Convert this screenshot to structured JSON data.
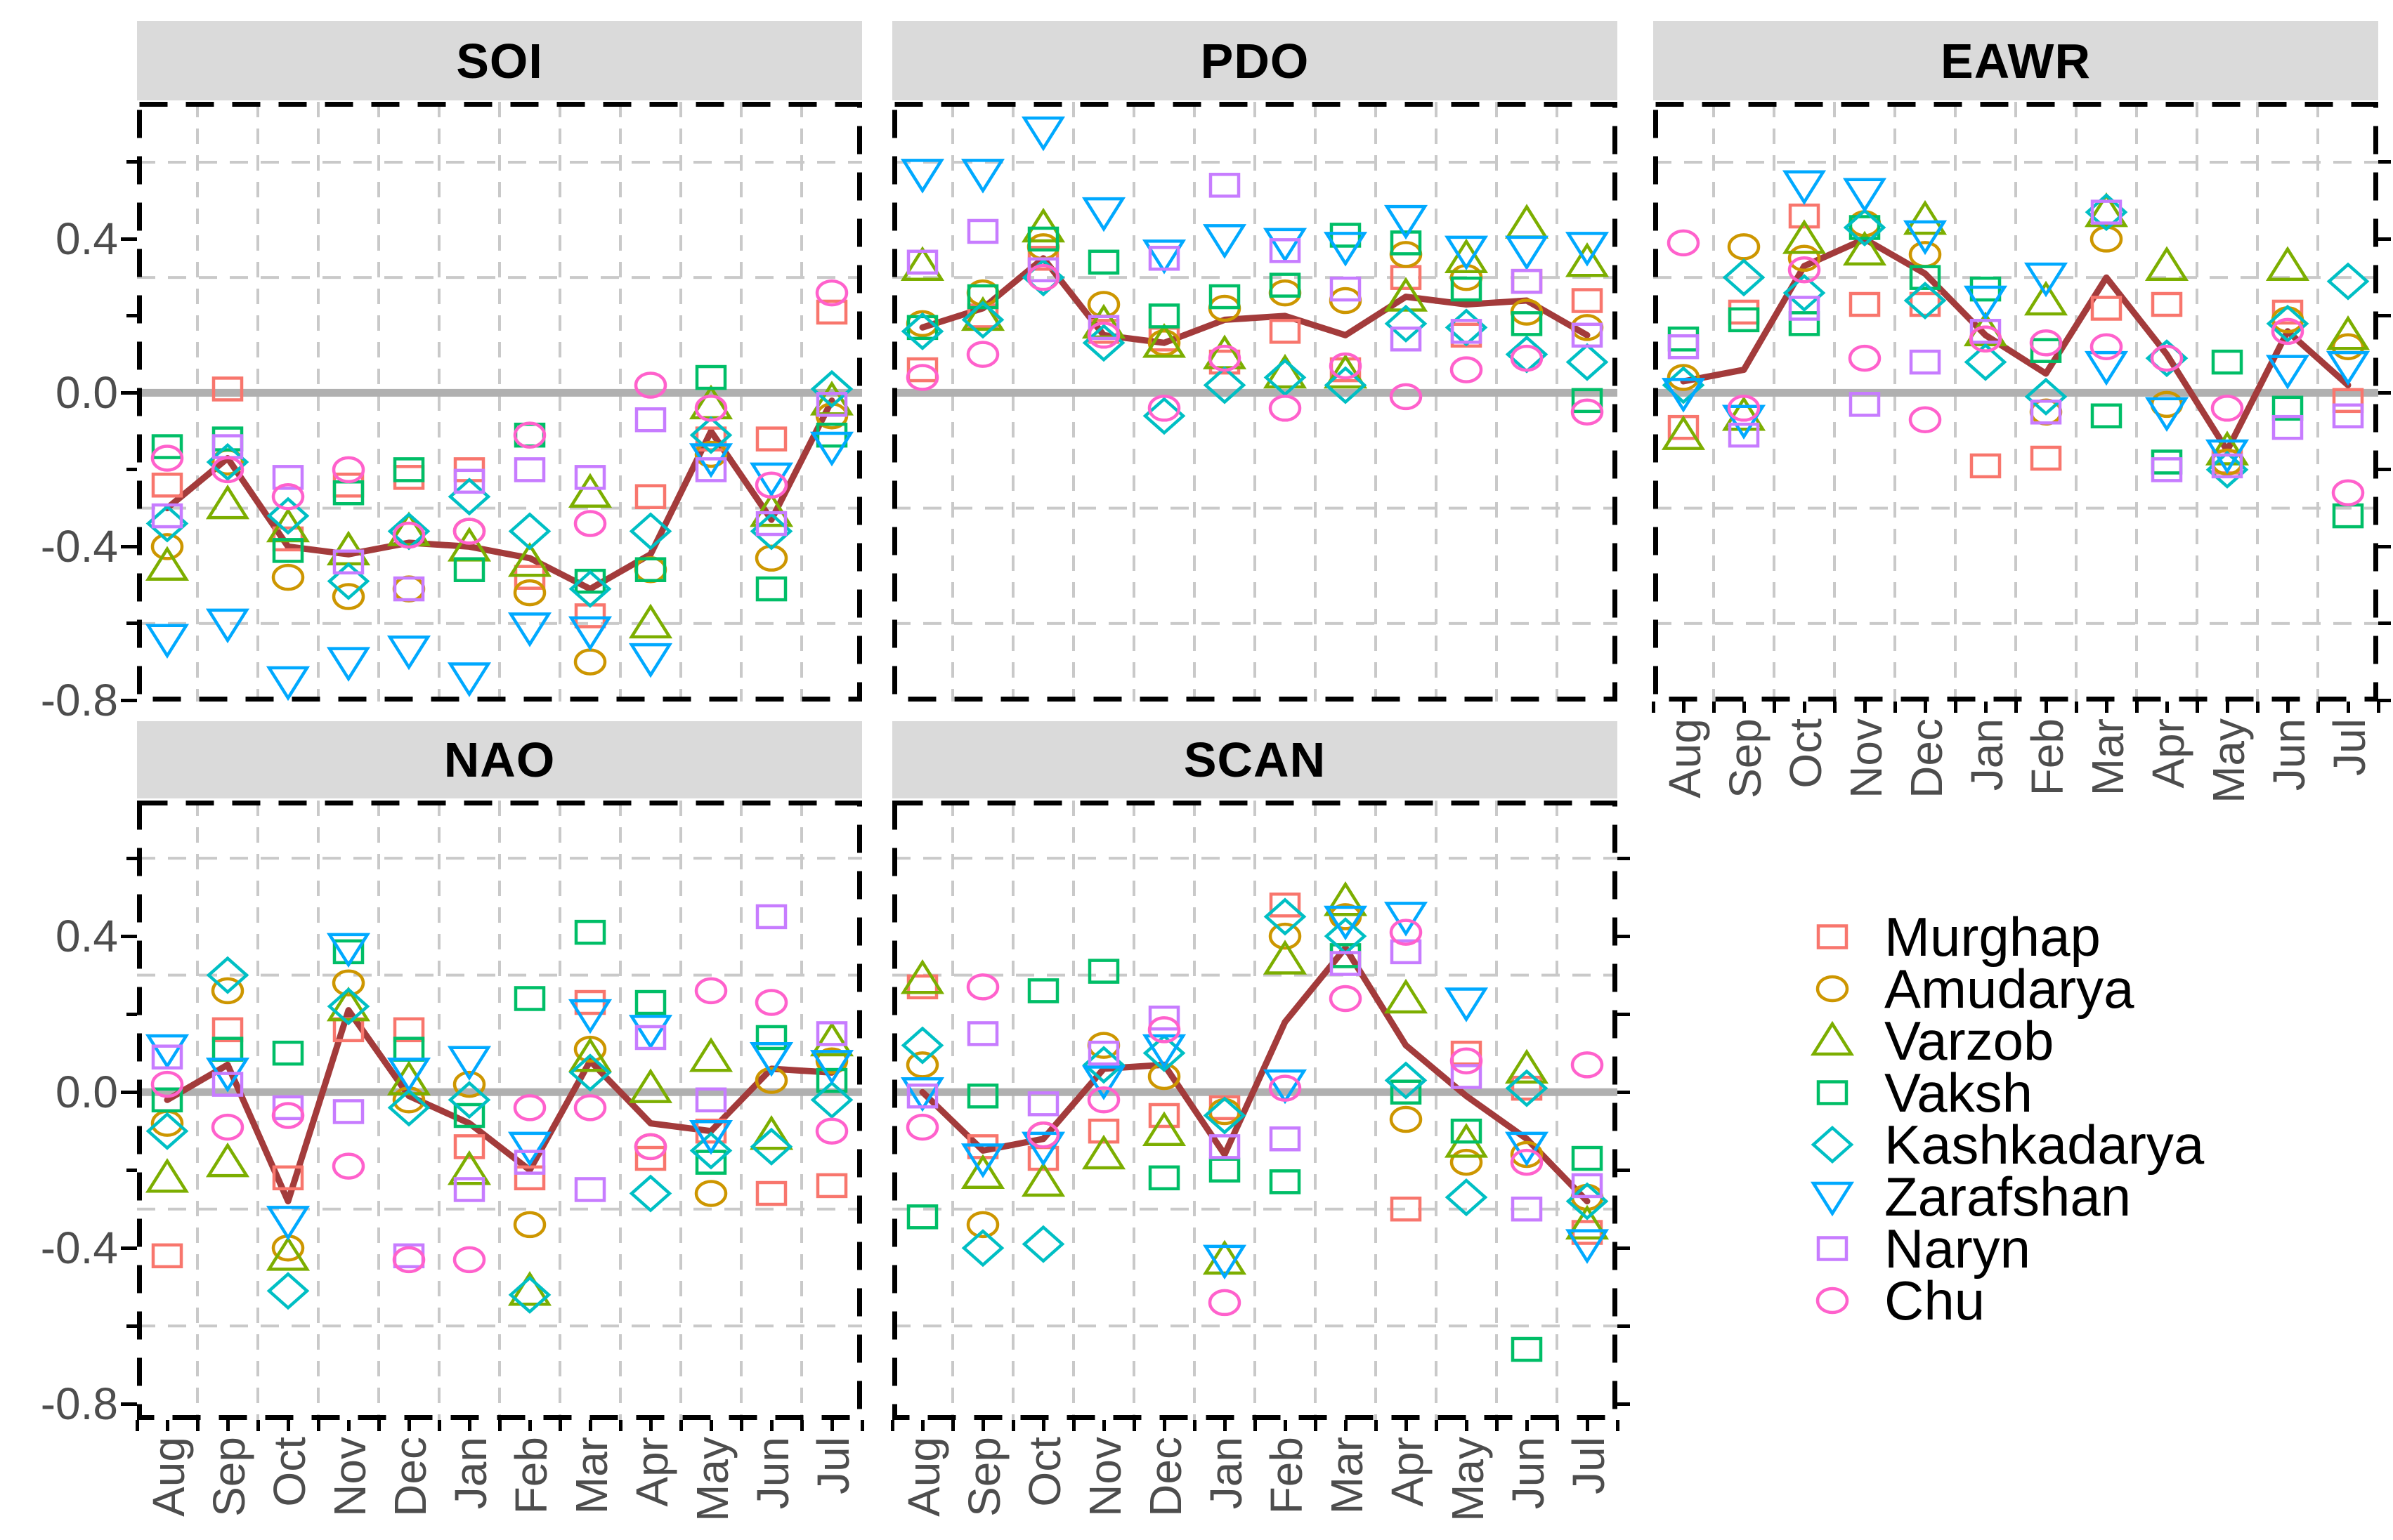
{
  "months": [
    "Aug",
    "Sep",
    "Oct",
    "Nov",
    "Dec",
    "Jan",
    "Feb",
    "Mar",
    "Apr",
    "May",
    "Jun",
    "Jul"
  ],
  "y_axis": {
    "tick_labels": [
      "0.4",
      "0.0",
      "-0.4",
      "-0.8"
    ],
    "tick_values": [
      0.4,
      0.0,
      -0.4,
      -0.8
    ],
    "minor_tick_values": [
      0.6,
      0.2,
      -0.2,
      -0.6
    ],
    "dashed_guide_values": [
      0.6,
      0.3,
      -0.3,
      -0.6
    ]
  },
  "style": {
    "mean_line_color": "#A33B3B",
    "zero_line_color": "#B0B0B0",
    "grid_color": "#C9C9C9",
    "panel_border_color": "#000000",
    "strip_bg_color": "#DADADA",
    "axis_text_color": "#4D4D4D"
  },
  "legend": {
    "items": [
      {
        "label": "Murghap",
        "shape": "square",
        "color": "#F8766D"
      },
      {
        "label": "Amudarya",
        "shape": "circle",
        "color": "#CD9600"
      },
      {
        "label": "Varzob",
        "shape": "triangle-up",
        "color": "#7CAE00"
      },
      {
        "label": "Vaksh",
        "shape": "square",
        "color": "#00BE67"
      },
      {
        "label": "Kashkadarya",
        "shape": "diamond",
        "color": "#00BFC4"
      },
      {
        "label": "Zarafshan",
        "shape": "triangle-down",
        "color": "#00A9FF"
      },
      {
        "label": "Naryn",
        "shape": "square",
        "color": "#C77CFF"
      },
      {
        "label": "Chu",
        "shape": "circle",
        "color": "#FF61CC"
      }
    ]
  },
  "chart_data": [
    {
      "type": "scatter",
      "title": "SOI",
      "row": 0,
      "col": 0,
      "x_categories": [
        "Aug",
        "Sep",
        "Oct",
        "Nov",
        "Dec",
        "Jan",
        "Feb",
        "Mar",
        "Apr",
        "May",
        "Jun",
        "Jul"
      ],
      "ylim": [
        -0.8,
        0.75
      ],
      "series": [
        {
          "name": "Murghap",
          "values": [
            -0.24,
            0.01,
            -0.38,
            -0.24,
            -0.22,
            -0.2,
            -0.48,
            -0.58,
            -0.27,
            -0.12,
            -0.12,
            0.21
          ]
        },
        {
          "name": "Amudarya",
          "values": [
            -0.4,
            -0.18,
            -0.48,
            -0.53,
            -0.51,
            -0.36,
            -0.52,
            -0.7,
            -0.46,
            -0.16,
            -0.43,
            -0.06
          ]
        },
        {
          "name": "Varzob",
          "values": [
            -0.45,
            -0.29,
            -0.35,
            -0.41,
            -0.36,
            -0.4,
            -0.44,
            -0.26,
            -0.6,
            -0.03,
            -0.31,
            -0.02
          ]
        },
        {
          "name": "Vaksh",
          "values": [
            -0.14,
            -0.12,
            -0.41,
            -0.26,
            -0.2,
            -0.46,
            -0.11,
            -0.49,
            -0.46,
            0.04,
            -0.51,
            -0.11
          ]
        },
        {
          "name": "Kashkadarya",
          "values": [
            -0.34,
            -0.18,
            -0.32,
            -0.49,
            -0.36,
            -0.27,
            -0.36,
            -0.51,
            -0.36,
            -0.11,
            -0.36,
            0.01
          ]
        },
        {
          "name": "Zarafshan",
          "values": [
            -0.64,
            -0.6,
            -0.75,
            -0.7,
            -0.67,
            -0.74,
            -0.61,
            -0.62,
            -0.69,
            -0.17,
            -0.22,
            -0.14
          ]
        },
        {
          "name": "Naryn",
          "values": [
            -0.32,
            -0.14,
            -0.22,
            -0.44,
            -0.51,
            -0.23,
            -0.2,
            -0.22,
            -0.07,
            -0.2,
            -0.34,
            -0.03
          ]
        },
        {
          "name": "Chu",
          "values": [
            -0.17,
            -0.2,
            -0.27,
            -0.2,
            -0.37,
            -0.36,
            -0.11,
            -0.34,
            0.02,
            -0.04,
            -0.24,
            0.26
          ]
        }
      ],
      "mean_line": [
        -0.3,
        -0.17,
        -0.4,
        -0.42,
        -0.39,
        -0.4,
        -0.43,
        -0.51,
        -0.42,
        -0.1,
        -0.33,
        -0.02
      ]
    },
    {
      "type": "scatter",
      "title": "PDO",
      "row": 0,
      "col": 1,
      "x_categories": [
        "Aug",
        "Sep",
        "Oct",
        "Nov",
        "Dec",
        "Jan",
        "Feb",
        "Mar",
        "Apr",
        "May",
        "Jun",
        "Jul"
      ],
      "ylim": [
        -0.8,
        0.75
      ],
      "series": [
        {
          "name": "Murghap",
          "values": [
            0.06,
            0.2,
            0.35,
            0.16,
            0.14,
            0.08,
            0.16,
            0.06,
            0.3,
            0.15,
            0.29,
            0.24
          ]
        },
        {
          "name": "Amudarya",
          "values": [
            0.18,
            0.26,
            0.38,
            0.23,
            0.13,
            0.22,
            0.26,
            0.24,
            0.36,
            0.3,
            0.21,
            0.17
          ]
        },
        {
          "name": "Varzob",
          "values": [
            0.33,
            0.2,
            0.43,
            0.18,
            0.13,
            0.1,
            0.05,
            0.05,
            0.25,
            0.35,
            0.44,
            0.34
          ]
        },
        {
          "name": "Vaksh",
          "values": [
            0.17,
            0.25,
            0.4,
            0.34,
            0.2,
            0.25,
            0.28,
            0.41,
            0.39,
            0.27,
            0.18,
            -0.02
          ]
        },
        {
          "name": "Kashkadarya",
          "values": [
            0.16,
            0.19,
            0.3,
            0.13,
            -0.06,
            0.02,
            0.04,
            0.02,
            0.18,
            0.17,
            0.1,
            0.08
          ]
        },
        {
          "name": "Zarafshan",
          "values": [
            0.57,
            0.57,
            0.68,
            0.47,
            0.36,
            0.4,
            0.39,
            0.38,
            0.45,
            0.37,
            0.37,
            0.38
          ]
        },
        {
          "name": "Naryn",
          "values": [
            0.34,
            0.42,
            0.32,
            0.17,
            0.35,
            0.54,
            0.37,
            0.27,
            0.14,
            0.16,
            0.29,
            0.15
          ]
        },
        {
          "name": "Chu",
          "values": [
            0.04,
            0.1,
            0.3,
            0.15,
            -0.04,
            0.09,
            -0.04,
            0.07,
            -0.01,
            0.06,
            0.09,
            -0.05
          ]
        }
      ],
      "mean_line": [
        0.17,
        0.22,
        0.35,
        0.15,
        0.13,
        0.19,
        0.2,
        0.15,
        0.25,
        0.23,
        0.24,
        0.15
      ]
    },
    {
      "type": "scatter",
      "title": "EAWR",
      "row": 0,
      "col": 2,
      "x_categories": [
        "Aug",
        "Sep",
        "Oct",
        "Nov",
        "Dec",
        "Jan",
        "Feb",
        "Mar",
        "Apr",
        "May",
        "Jun",
        "Jul"
      ],
      "ylim": [
        -0.8,
        0.75
      ],
      "series": [
        {
          "name": "Murghap",
          "values": [
            -0.09,
            0.21,
            0.46,
            0.23,
            0.23,
            -0.19,
            -0.17,
            0.22,
            0.23,
            -0.18,
            0.21,
            -0.02
          ]
        },
        {
          "name": "Amudarya",
          "values": [
            0.04,
            0.38,
            0.35,
            0.44,
            0.36,
            0.14,
            -0.05,
            0.4,
            -0.03,
            -0.18,
            0.19,
            0.12
          ]
        },
        {
          "name": "Varzob",
          "values": [
            -0.11,
            -0.06,
            0.4,
            0.37,
            0.45,
            0.16,
            0.24,
            0.47,
            0.33,
            -0.15,
            0.33,
            0.15
          ]
        },
        {
          "name": "Vaksh",
          "values": [
            0.14,
            0.19,
            0.18,
            0.43,
            0.3,
            0.27,
            0.11,
            -0.06,
            -0.18,
            0.08,
            -0.04,
            -0.32
          ]
        },
        {
          "name": "Kashkadarya",
          "values": [
            0.02,
            0.3,
            0.26,
            0.43,
            0.24,
            0.08,
            -0.01,
            0.47,
            0.09,
            -0.2,
            0.18,
            0.29
          ]
        },
        {
          "name": "Zarafshan",
          "values": [
            0.0,
            -0.07,
            0.54,
            0.52,
            0.41,
            0.24,
            0.3,
            0.07,
            -0.05,
            -0.16,
            0.06,
            0.07
          ]
        },
        {
          "name": "Naryn",
          "values": [
            0.12,
            -0.11,
            0.22,
            -0.03,
            0.08,
            0.16,
            -0.05,
            0.47,
            -0.2,
            -0.19,
            -0.09,
            -0.06
          ]
        },
        {
          "name": "Chu",
          "values": [
            0.39,
            -0.04,
            0.32,
            0.09,
            -0.07,
            0.14,
            0.13,
            0.12,
            0.09,
            -0.04,
            0.16,
            -0.26
          ]
        }
      ],
      "mean_line": [
        0.03,
        0.06,
        0.33,
        0.4,
        0.31,
        0.15,
        0.05,
        0.3,
        0.1,
        -0.15,
        0.16,
        0.02
      ]
    },
    {
      "type": "scatter",
      "title": "NAO",
      "row": 1,
      "col": 0,
      "x_categories": [
        "Aug",
        "Sep",
        "Oct",
        "Nov",
        "Dec",
        "Jan",
        "Feb",
        "Mar",
        "Apr",
        "May",
        "Jun",
        "Jul"
      ],
      "ylim": [
        -0.8,
        0.75
      ],
      "series": [
        {
          "name": "Murghap",
          "values": [
            -0.42,
            0.16,
            -0.22,
            0.16,
            0.16,
            -0.14,
            -0.22,
            0.23,
            -0.17,
            -0.1,
            -0.26,
            -0.24
          ]
        },
        {
          "name": "Amudarya",
          "values": [
            -0.08,
            0.26,
            -0.4,
            0.28,
            -0.02,
            0.02,
            -0.34,
            0.11,
            -0.14,
            -0.26,
            0.03,
            0.08
          ]
        },
        {
          "name": "Varzob",
          "values": [
            -0.22,
            -0.18,
            -0.42,
            0.22,
            0.03,
            -0.2,
            -0.51,
            0.09,
            0.01,
            0.09,
            -0.11,
            0.13
          ]
        },
        {
          "name": "Vaksh",
          "values": [
            -0.02,
            0.11,
            0.1,
            0.36,
            0.11,
            -0.06,
            0.24,
            0.41,
            0.23,
            -0.18,
            0.14,
            0.03
          ]
        },
        {
          "name": "Kashkadarya",
          "values": [
            -0.1,
            0.3,
            -0.51,
            0.22,
            -0.04,
            -0.02,
            -0.52,
            0.05,
            -0.26,
            -0.15,
            -0.14,
            -0.02
          ]
        },
        {
          "name": "Zarafshan",
          "values": [
            0.11,
            0.05,
            -0.33,
            0.37,
            0.05,
            0.08,
            -0.14,
            0.2,
            0.16,
            -0.11,
            0.09,
            0.07
          ]
        },
        {
          "name": "Naryn",
          "values": [
            0.09,
            0.02,
            -0.04,
            -0.05,
            -0.42,
            -0.25,
            -0.18,
            -0.25,
            0.14,
            -0.02,
            0.45,
            0.15
          ]
        },
        {
          "name": "Chu",
          "values": [
            0.02,
            -0.09,
            -0.06,
            -0.19,
            -0.43,
            -0.43,
            -0.04,
            -0.04,
            -0.14,
            0.26,
            0.23,
            -0.1
          ]
        }
      ],
      "mean_line": [
        -0.02,
        0.07,
        -0.28,
        0.21,
        -0.01,
        -0.08,
        -0.2,
        0.08,
        -0.08,
        -0.1,
        0.06,
        0.05
      ]
    },
    {
      "type": "scatter",
      "title": "SCAN",
      "row": 1,
      "col": 1,
      "x_categories": [
        "Aug",
        "Sep",
        "Oct",
        "Nov",
        "Dec",
        "Jan",
        "Feb",
        "Mar",
        "Apr",
        "May",
        "Jun",
        "Jul"
      ],
      "ylim": [
        -0.8,
        0.75
      ],
      "series": [
        {
          "name": "Murghap",
          "values": [
            0.27,
            -0.14,
            -0.17,
            -0.1,
            -0.06,
            -0.04,
            0.48,
            0.35,
            -0.3,
            0.1,
            0.01,
            -0.36
          ]
        },
        {
          "name": "Amudarya",
          "values": [
            0.07,
            -0.34,
            -0.11,
            0.12,
            0.04,
            -0.05,
            0.4,
            0.45,
            -0.07,
            -0.18,
            -0.16,
            -0.27
          ]
        },
        {
          "name": "Varzob",
          "values": [
            0.29,
            -0.21,
            -0.23,
            -0.16,
            -0.1,
            -0.43,
            0.34,
            0.49,
            0.24,
            -0.13,
            0.06,
            -0.34
          ]
        },
        {
          "name": "Vaksh",
          "values": [
            -0.32,
            -0.01,
            0.26,
            0.31,
            -0.22,
            -0.2,
            -0.23,
            0.35,
            0.0,
            -0.1,
            -0.66,
            -0.17
          ]
        },
        {
          "name": "Kashkadarya",
          "values": [
            0.12,
            -0.4,
            -0.39,
            0.07,
            0.1,
            -0.06,
            0.45,
            0.4,
            0.03,
            -0.27,
            0.01,
            -0.28
          ]
        },
        {
          "name": "Zarafshan",
          "values": [
            0.0,
            -0.17,
            -0.14,
            0.03,
            0.11,
            -0.43,
            0.02,
            0.44,
            0.45,
            0.23,
            -0.14,
            -0.39
          ]
        },
        {
          "name": "Naryn",
          "values": [
            -0.01,
            0.15,
            -0.03,
            0.1,
            0.19,
            -0.14,
            -0.12,
            0.33,
            0.36,
            0.04,
            -0.3,
            -0.24
          ]
        },
        {
          "name": "Chu",
          "values": [
            -0.09,
            0.27,
            -0.11,
            -0.02,
            0.16,
            -0.54,
            0.01,
            0.24,
            0.41,
            0.08,
            -0.18,
            0.07
          ]
        }
      ],
      "mean_line": [
        0.0,
        -0.15,
        -0.12,
        0.06,
        0.07,
        -0.16,
        0.18,
        0.37,
        0.12,
        -0.01,
        -0.12,
        -0.28
      ]
    }
  ]
}
